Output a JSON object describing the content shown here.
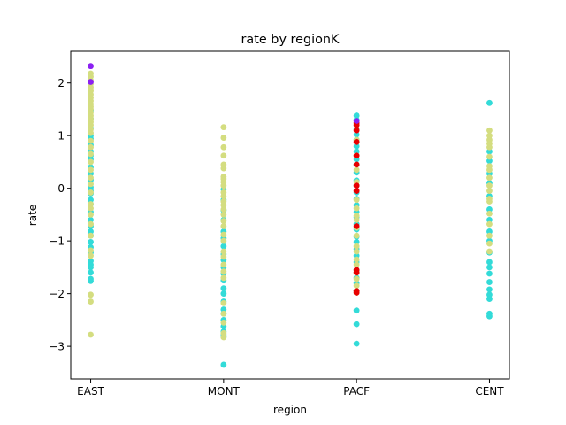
{
  "chart_data": {
    "type": "scatter",
    "title": "rate by regionK",
    "xlabel": "region",
    "ylabel": "rate",
    "categories": [
      "EAST",
      "MONT",
      "PACF",
      "CENT"
    ],
    "yticks": [
      -3,
      -2,
      -1,
      0,
      1,
      2
    ],
    "ylim": [
      -3.62,
      2.6
    ],
    "grid": false,
    "colors": {
      "cyan": "#33dbd8",
      "khaki": "#d4dd80",
      "red": "#e80000",
      "purple": "#8b20f2",
      "axis": "#000000",
      "background": "#ffffff"
    },
    "series": [
      {
        "color": "cyan",
        "points": [
          {
            "x": "EAST",
            "y": [
              1.32,
              1.14,
              1.0,
              0.94,
              0.82,
              0.7,
              0.55,
              0.4,
              0.28,
              0.16,
              0.02,
              -0.1,
              -0.22,
              -0.3,
              -0.45,
              -0.6,
              -0.72,
              -0.82,
              -0.9,
              -1.02,
              -1.12,
              -1.22,
              -1.38,
              -1.45,
              -1.5,
              -1.6,
              -1.72,
              -1.76,
              1.48,
              0.62,
              -0.05
            ]
          },
          {
            "x": "MONT",
            "y": [
              -0.02,
              -0.22,
              -0.42,
              -0.6,
              -0.82,
              -0.95,
              -1.1,
              -1.25,
              -1.36,
              -1.5,
              -1.62,
              -1.75,
              -1.9,
              -2.0,
              -2.15,
              -2.3,
              -2.38,
              -2.5,
              -2.62,
              -2.72,
              -2.78,
              -2.82,
              -3.35
            ]
          },
          {
            "x": "PACF",
            "y": [
              1.38,
              1.3,
              1.12,
              1.02,
              0.92,
              0.8,
              0.7,
              0.55,
              0.45,
              0.3,
              0.15,
              0.05,
              -0.08,
              -0.2,
              -0.32,
              -0.45,
              -0.55,
              -0.68,
              -0.78,
              -0.92,
              -1.02,
              -1.15,
              -1.28,
              -1.4,
              -1.55,
              -1.7,
              -1.8,
              -1.95,
              -2.32,
              -2.58,
              -2.95
            ]
          },
          {
            "x": "CENT",
            "y": [
              1.62,
              0.7,
              0.52,
              0.28,
              0.1,
              -0.15,
              -0.4,
              -0.6,
              -0.82,
              -1.0,
              -1.22,
              -1.4,
              -1.5,
              -1.62,
              -1.78,
              -1.92,
              -2.02,
              -2.1,
              -2.38,
              -2.43
            ]
          }
        ]
      },
      {
        "color": "khaki",
        "points": [
          {
            "x": "EAST",
            "y": [
              2.18,
              2.12,
              2.05,
              1.98,
              1.92,
              1.85,
              1.78,
              1.72,
              1.66,
              1.6,
              1.55,
              1.5,
              1.44,
              1.38,
              1.32,
              1.26,
              1.2,
              1.12,
              1.05,
              0.9,
              0.78,
              0.65,
              0.5,
              0.35,
              0.2,
              0.08,
              -0.08,
              -0.3,
              -0.38,
              -0.5,
              -0.68,
              -0.9,
              -1.18,
              -1.28,
              -2.02,
              -2.15,
              -2.78
            ]
          },
          {
            "x": "MONT",
            "y": [
              1.16,
              0.96,
              0.78,
              0.62,
              0.45,
              0.38,
              0.22,
              0.18,
              0.12,
              0.05,
              -0.08,
              -0.15,
              -0.25,
              -0.32,
              -0.4,
              -0.5,
              -0.62,
              -0.72,
              -0.88,
              -1.0,
              -1.2,
              -1.3,
              -1.45,
              -1.58,
              -1.7,
              -2.18,
              -2.38,
              -2.55,
              -2.75,
              -2.83
            ]
          },
          {
            "x": "PACF",
            "y": [
              0.92,
              0.62,
              0.35,
              0.12,
              -0.22,
              -0.38,
              -0.52,
              -0.6,
              -0.75,
              -0.9,
              -1.1,
              -1.2,
              -1.35,
              -1.45,
              -1.6,
              -1.72,
              -1.85,
              -1.98
            ]
          },
          {
            "x": "CENT",
            "y": [
              1.1,
              1.0,
              0.92,
              0.85,
              0.78,
              0.6,
              0.42,
              0.35,
              0.2,
              0.05,
              -0.05,
              -0.2,
              -0.25,
              -0.48,
              -0.68,
              -0.9,
              -1.05,
              -1.2
            ]
          }
        ]
      },
      {
        "color": "red",
        "points": [
          {
            "x": "PACF",
            "y": [
              1.24,
              1.2,
              1.1,
              0.88,
              0.62,
              0.45,
              0.05,
              -0.05,
              -0.72,
              -1.55,
              -1.6,
              -1.95,
              -1.98
            ]
          }
        ]
      },
      {
        "color": "purple",
        "points": [
          {
            "x": "EAST",
            "y": [
              2.32,
              2.02
            ]
          },
          {
            "x": "PACF",
            "y": [
              1.28
            ]
          }
        ]
      }
    ]
  }
}
